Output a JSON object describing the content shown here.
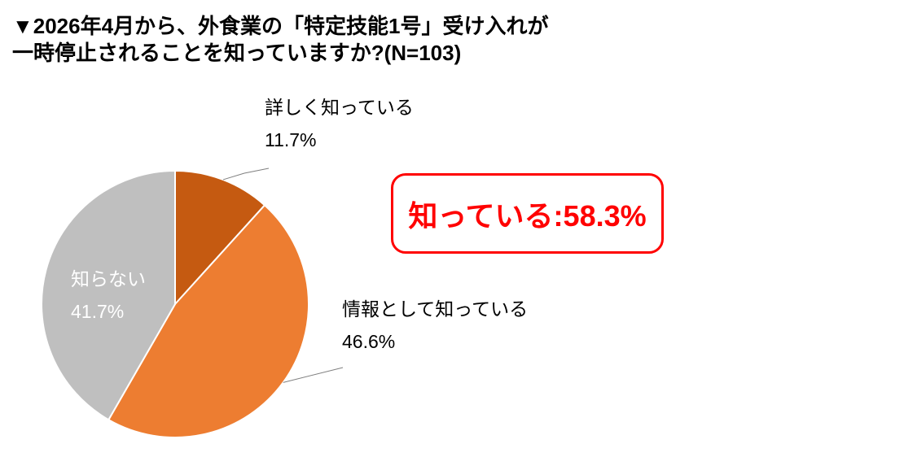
{
  "title": {
    "line1": "▼2026年4月から、外食業の「特定技能1号」受け入れが",
    "line2": "一時停止されることを知っていますか?(N=103)"
  },
  "annotation": {
    "text": "知っている:58.3%",
    "value": 58.3,
    "border_color": "#FF0000",
    "text_color": "#FF0000"
  },
  "chart_data": {
    "type": "pie",
    "title": "2026年4月から、外食業の「特定技能1号」受け入れが一時停止されることを知っていますか?",
    "sample_size": 103,
    "start_angle": "top",
    "direction": "clockwise",
    "slices": [
      {
        "label": "詳しく知っている",
        "value": 11.7,
        "display": "11.7%",
        "color": "#C55A11",
        "label_position": "outside",
        "label_color": "#000000"
      },
      {
        "label": "情報として知っている",
        "value": 46.6,
        "display": "46.6%",
        "color": "#ED7D31",
        "label_position": "outside",
        "label_color": "#000000"
      },
      {
        "label": "知らない",
        "value": 41.7,
        "display": "41.7%",
        "color": "#BFBFBF",
        "label_position": "inside",
        "label_color": "#FFFFFF"
      }
    ],
    "slice_border_color": "#FFFFFF",
    "leader_line_color": "#7F7F7F",
    "legend": "none",
    "background_color": "#FFFFFF"
  }
}
